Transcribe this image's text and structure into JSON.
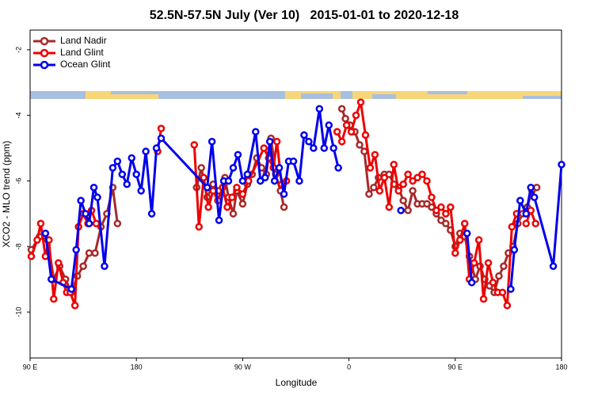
{
  "chart_data": {
    "type": "line",
    "title": "52.5N-57.5N July (Ver 10)   2015-01-01 to 2020-12-18",
    "x_label": "Longitude",
    "y_label": "XCO2 - MLO trend (ppm)",
    "xlim": [
      90,
      540
    ],
    "ylim": [
      -11.4,
      -1.4
    ],
    "xticks": [
      {
        "value": 90,
        "label": "90 E"
      },
      180,
      {
        "value": 270,
        "label": "90 W"
      },
      {
        "value": 360,
        "label": "0"
      },
      {
        "value": 450,
        "label": "90 E"
      },
      {
        "value": 540,
        "label": "180"
      }
    ],
    "yticks": [
      -2,
      -4,
      -6,
      -8,
      -10
    ],
    "legend": "top-left",
    "series": [
      {
        "name": "Land Nadir",
        "color": "#a52a2a",
        "x": [
          91,
          98,
          105,
          110,
          115,
          120,
          125,
          130,
          135,
          140,
          145,
          150,
          155,
          160,
          164,
          200,
          231,
          235,
          240,
          245,
          250,
          255,
          258,
          262,
          265,
          270,
          274,
          278,
          282,
          286,
          290,
          294,
          298,
          302,
          305,
          330,
          354,
          357,
          361,
          365,
          369,
          373,
          377,
          381,
          385,
          390,
          394,
          398,
          402,
          406,
          410,
          414,
          418,
          422,
          426,
          430,
          434,
          438,
          442,
          446,
          450,
          454,
          458,
          462,
          467,
          471,
          475,
          479,
          483,
          487,
          491,
          495,
          499,
          503,
          507,
          511,
          515,
          519
        ],
        "values": [
          -8.1,
          -7.7,
          -7.8,
          -9.0,
          -8.6,
          -9.0,
          -9.4,
          -8.9,
          -8.6,
          -8.2,
          -8.2,
          -7.4,
          -7.0,
          -6.2,
          -7.3,
          null,
          -6.2,
          -5.6,
          -6.5,
          -6.1,
          -6.3,
          -5.9,
          -6.5,
          -7.0,
          -6.3,
          -6.7,
          -6.1,
          -5.8,
          -5.3,
          -5.6,
          -5.8,
          -4.7,
          -5.8,
          -6.3,
          -6.8,
          null,
          -3.8,
          -4.1,
          -4.3,
          -4.5,
          -4.9,
          -5.1,
          -6.4,
          -6.2,
          -5.9,
          -5.8,
          -5.8,
          -6.1,
          -6.2,
          -6.6,
          -6.9,
          -6.3,
          -6.7,
          -6.7,
          -6.7,
          -6.8,
          -7.0,
          -7.2,
          -7.3,
          -7.5,
          -8.0,
          -7.6,
          -7.7,
          -8.3,
          -9.0,
          -8.6,
          -9.0,
          -9.2,
          -9.4,
          -8.9,
          -8.6,
          -8.2,
          -8.0,
          -7.3,
          -7.0,
          -6.8,
          -6.3,
          -6.2
        ]
      },
      {
        "name": "Land Glint",
        "color": "#ee0000",
        "x": [
          91,
          96,
          99,
          103,
          106,
          110,
          114,
          118,
          121,
          124,
          128,
          131,
          135,
          139,
          142,
          146,
          170,
          198,
          201,
          215,
          229,
          233,
          237,
          241,
          245,
          249,
          253,
          257,
          261,
          265,
          270,
          275,
          288,
          292,
          296,
          299,
          303,
          307,
          330,
          350,
          354,
          358,
          362,
          366,
          370,
          374,
          378,
          382,
          386,
          390,
          394,
          398,
          402,
          406,
          410,
          414,
          418,
          422,
          426,
          430,
          434,
          438,
          442,
          446,
          450,
          454,
          458,
          462,
          466,
          470,
          474,
          478,
          482,
          486,
          490,
          494,
          498,
          502,
          506,
          510,
          514,
          518
        ],
        "values": [
          -8.3,
          -7.8,
          -7.3,
          -8.3,
          -7.8,
          -9.6,
          -8.5,
          -9.1,
          -9.4,
          -9.4,
          -9.8,
          -7.4,
          -7.0,
          -7.3,
          -6.9,
          -7.3,
          null,
          -5.1,
          -4.4,
          null,
          -4.9,
          -7.4,
          -5.9,
          -6.8,
          -6.3,
          -6.6,
          -6.2,
          -6.8,
          -6.5,
          -6.2,
          -6.4,
          -6.0,
          -5.0,
          -5.3,
          -5.6,
          -4.8,
          -6.1,
          -6.0,
          null,
          -4.5,
          -4.8,
          -4.3,
          -4.5,
          -4.0,
          -3.6,
          -4.6,
          -5.6,
          -5.2,
          -6.3,
          -5.9,
          -6.8,
          -5.5,
          -6.3,
          -6.1,
          -5.8,
          -6.0,
          -5.9,
          -5.8,
          -6.0,
          -6.5,
          -6.9,
          -6.8,
          -7.0,
          -6.8,
          -8.2,
          -7.8,
          -7.3,
          -9.0,
          -8.5,
          -7.8,
          -9.6,
          -8.5,
          -9.1,
          -9.4,
          -9.4,
          -9.8,
          -7.4,
          -7.0,
          null,
          -7.3,
          -6.9,
          -7.3
        ]
      },
      {
        "name": "Ocean Glint",
        "color": "#0000ee",
        "x": [
          103,
          108,
          125,
          129,
          133,
          137,
          140,
          144,
          147,
          153,
          160,
          164,
          168,
          172,
          176,
          180,
          184,
          188,
          193,
          197,
          201,
          240,
          244,
          250,
          254,
          258,
          262,
          266,
          270,
          274,
          281,
          285,
          289,
          293,
          297,
          301,
          305,
          309,
          313,
          318,
          322,
          326,
          330,
          335,
          339,
          343,
          347,
          351,
          380,
          404,
          430,
          460,
          464,
          480,
          497,
          500,
          505,
          510,
          514,
          517,
          533,
          540
        ],
        "values": [
          -7.6,
          -9.0,
          -9.3,
          -8.1,
          -6.6,
          -7.0,
          -7.3,
          -6.2,
          -6.5,
          -8.6,
          -5.6,
          -5.4,
          -5.8,
          -6.1,
          -5.3,
          -5.8,
          -6.3,
          -5.1,
          -7.0,
          -5.0,
          -4.7,
          -6.2,
          -4.8,
          -7.2,
          -6.0,
          -6.0,
          -5.6,
          -5.2,
          -6.0,
          -5.8,
          -4.5,
          -6.0,
          -5.9,
          -4.8,
          -6.0,
          -5.6,
          -6.4,
          -5.4,
          -5.4,
          -6.0,
          -4.6,
          -4.8,
          -5.0,
          -3.8,
          -5.0,
          -4.3,
          -5.0,
          -5.6,
          null,
          -6.9,
          null,
          -7.6,
          -9.1,
          null,
          -9.3,
          -8.1,
          -6.6,
          -7.0,
          -6.2,
          -6.5,
          -8.6,
          -5.5
        ]
      }
    ]
  }
}
